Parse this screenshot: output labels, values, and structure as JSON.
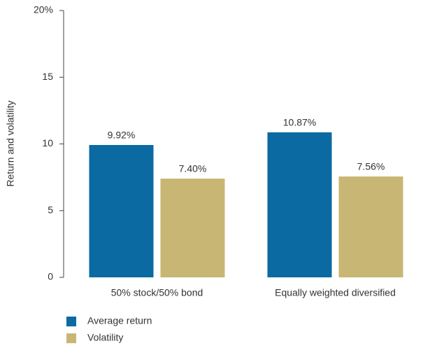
{
  "chart_data": {
    "type": "bar",
    "y_label": "Return and volatility",
    "categories": [
      "50% stock/50% bond",
      "Equally weighted diversified"
    ],
    "series": [
      {
        "name": "Average return",
        "color": "#0a6aa1",
        "values": [
          9.92,
          10.87
        ],
        "value_labels": [
          "9.92%",
          "10.87%"
        ]
      },
      {
        "name": "Volatility",
        "color": "#c8b675",
        "values": [
          7.4,
          7.56
        ],
        "value_labels": [
          "7.40%",
          "7.56%"
        ]
      }
    ],
    "ylim": [
      0,
      20
    ],
    "yticks": [
      0,
      5,
      10,
      15,
      {
        "value": 20,
        "label": "20%"
      }
    ],
    "grid": false,
    "legend": "bottom-left"
  }
}
